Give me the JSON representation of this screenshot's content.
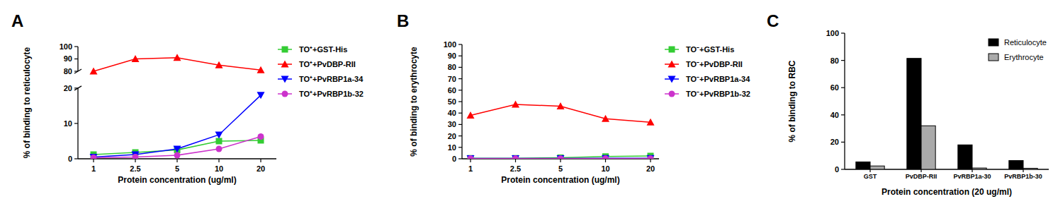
{
  "chart_data": [
    {
      "type": "line",
      "title": "A",
      "x_label": "Protein concentration (ug/ml)",
      "y_label": "% of binding to reticulocyte",
      "categories": [
        "1",
        "2.5",
        "5",
        "10",
        "20"
      ],
      "ylim": [
        0,
        100
      ],
      "yticks": [
        0,
        10,
        20,
        80,
        90,
        100
      ],
      "ybreak": [
        20,
        80
      ],
      "series": [
        {
          "name": "TO⁺+GST-His",
          "color": "#33cc33",
          "marker": "square",
          "values": [
            1.2,
            1.8,
            2.5,
            5,
            5.2
          ]
        },
        {
          "name": "TO⁺+PvDBP-RII",
          "color": "#ff0000",
          "marker": "triangle",
          "values": [
            80,
            90,
            91,
            85,
            81
          ]
        },
        {
          "name": "TO⁺+PvRBP1a-34",
          "color": "#0000ff",
          "marker": "triangle-down",
          "values": [
            0.5,
            1.2,
            2.8,
            6.8,
            18
          ]
        },
        {
          "name": "TO⁺+PvRBP1b-32",
          "color": "#cc33cc",
          "marker": "circle",
          "values": [
            0.3,
            0.5,
            1.0,
            2.8,
            6.3
          ]
        }
      ]
    },
    {
      "type": "line",
      "title": "B",
      "x_label": "Protein concentration (ug/ml)",
      "y_label": "% of binding to erythrocyte",
      "categories": [
        "1",
        "2.5",
        "5",
        "10",
        "20"
      ],
      "ylim": [
        0,
        100
      ],
      "yticks": [
        0,
        10,
        20,
        30,
        40,
        50,
        60,
        70,
        80,
        90,
        100
      ],
      "series": [
        {
          "name": "TO⁻+GST-His",
          "color": "#33cc33",
          "marker": "square",
          "values": [
            0.5,
            0.5,
            1,
            2,
            2.5
          ]
        },
        {
          "name": "TO⁻+PvDBP-RII",
          "color": "#ff0000",
          "marker": "triangle",
          "values": [
            38,
            47.5,
            46,
            35,
            32
          ]
        },
        {
          "name": "TO⁻+PvRBP1a-34",
          "color": "#0000ff",
          "marker": "triangle-down",
          "values": [
            0.3,
            0.3,
            0.3,
            0.5,
            0.5
          ]
        },
        {
          "name": "TO⁻+PvRBP1b-32",
          "color": "#cc33cc",
          "marker": "circle",
          "values": [
            0.2,
            0.2,
            0.2,
            0.2,
            0.2
          ]
        }
      ]
    },
    {
      "type": "bar",
      "title": "C",
      "x_label": "Protein concentration (20 ug/ml)",
      "y_label": "% of binding to RBC",
      "categories": [
        "GST",
        "PvDBP-RII",
        "PvRBP1a-30",
        "PvRBP1b-30"
      ],
      "ylim": [
        0,
        100
      ],
      "yticks": [
        0,
        20,
        40,
        60,
        80,
        100
      ],
      "legend": "upper right",
      "series": [
        {
          "name": "Reticulocyte",
          "color": "#000000",
          "values": [
            5.5,
            81.5,
            18,
            6.5
          ]
        },
        {
          "name": "Erythrocyte",
          "color": "#aaaaaa",
          "values": [
            2.5,
            32,
            1,
            0.8
          ]
        }
      ]
    }
  ]
}
